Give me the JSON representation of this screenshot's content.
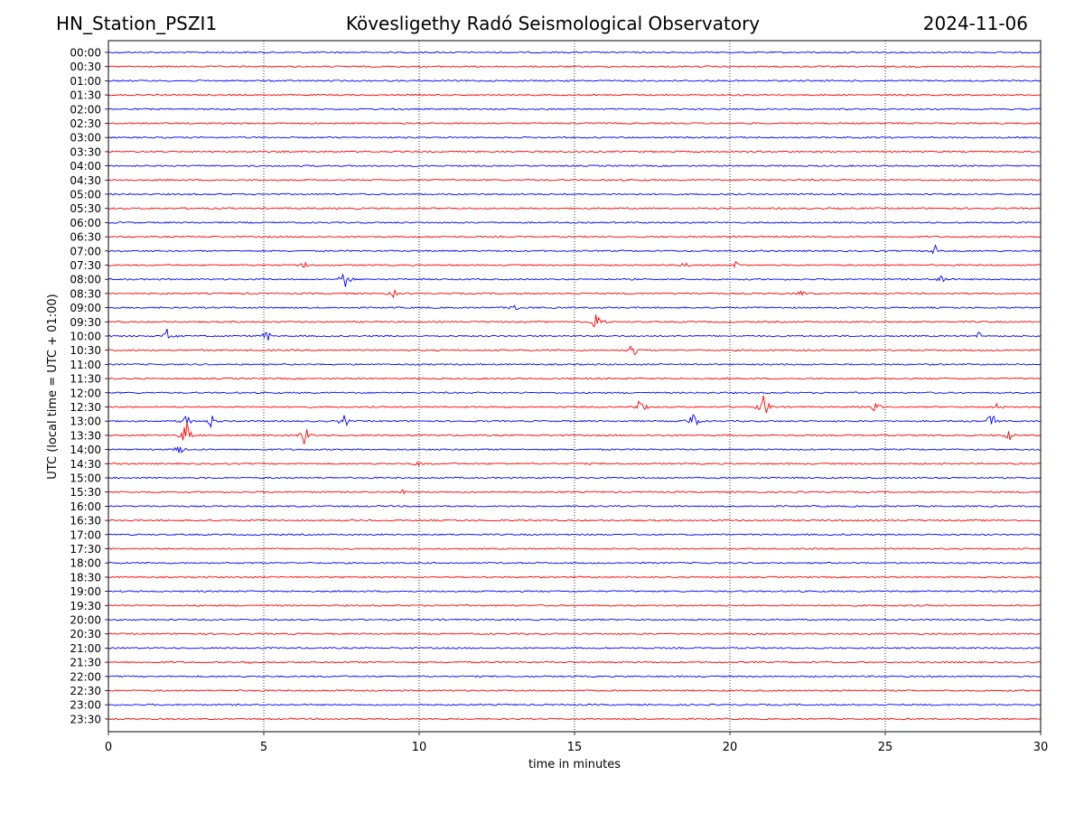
{
  "header": {
    "station": "HN_Station_PSZI1",
    "observatory": "Kövesligethy Radó Seismological Observatory",
    "date": "2024-11-06"
  },
  "chart_data": {
    "type": "line",
    "title": "Kövesligethy Radó Seismological Observatory",
    "xlabel": "time in minutes",
    "ylabel": "UTC (local time = UTC + 01:00)",
    "xlim": [
      0,
      30
    ],
    "xticks": [
      0,
      5,
      10,
      15,
      20,
      25,
      30
    ],
    "grid": "vertical dotted lines at 5-minute intervals",
    "row_labels": [
      "00:00",
      "00:30",
      "01:00",
      "01:30",
      "02:00",
      "02:30",
      "03:00",
      "03:30",
      "04:00",
      "04:30",
      "05:00",
      "05:30",
      "06:00",
      "06:30",
      "07:00",
      "07:30",
      "08:00",
      "08:30",
      "09:00",
      "09:30",
      "10:00",
      "10:30",
      "11:00",
      "11:30",
      "12:00",
      "12:30",
      "13:00",
      "13:30",
      "14:00",
      "14:30",
      "15:00",
      "15:30",
      "16:00",
      "16:30",
      "17:00",
      "17:30",
      "18:00",
      "18:30",
      "19:00",
      "19:30",
      "20:00",
      "20:30",
      "21:00",
      "21:30",
      "22:00",
      "22:30",
      "23:00",
      "23:30"
    ],
    "colors": {
      "even_rows": "#0000ff",
      "odd_rows": "#ff0000"
    },
    "events": [
      {
        "row": "08:00",
        "minute": 7.6,
        "amplitude": 0.9
      },
      {
        "row": "09:30",
        "minute": 15.7,
        "amplitude": 1.1
      },
      {
        "row": "10:30",
        "minute": 16.9,
        "amplitude": 0.8
      },
      {
        "row": "12:30",
        "minute": 17.1,
        "amplitude": 0.9
      },
      {
        "row": "12:30",
        "minute": 21.1,
        "amplitude": 1.3
      },
      {
        "row": "13:00",
        "minute": 2.5,
        "amplitude": 0.7
      },
      {
        "row": "13:00",
        "minute": 3.3,
        "amplitude": 0.8
      },
      {
        "row": "13:00",
        "minute": 7.6,
        "amplitude": 0.7
      },
      {
        "row": "13:00",
        "minute": 18.8,
        "amplitude": 1.2
      },
      {
        "row": "13:00",
        "minute": 28.4,
        "amplitude": 1.0
      },
      {
        "row": "13:30",
        "minute": 2.5,
        "amplitude": 1.6
      },
      {
        "row": "13:30",
        "minute": 6.3,
        "amplitude": 1.2
      },
      {
        "row": "13:30",
        "minute": 29.0,
        "amplitude": 0.6
      },
      {
        "row": "10:00",
        "minute": 1.9,
        "amplitude": 0.7
      },
      {
        "row": "10:00",
        "minute": 5.1,
        "amplitude": 0.6
      },
      {
        "row": "10:00",
        "minute": 28.0,
        "amplitude": 0.5
      },
      {
        "row": "07:00",
        "minute": 26.6,
        "amplitude": 0.6
      },
      {
        "row": "08:00",
        "minute": 26.8,
        "amplitude": 0.6
      },
      {
        "row": "07:30",
        "minute": 18.5,
        "amplitude": 0.4
      },
      {
        "row": "07:30",
        "minute": 20.2,
        "amplitude": 0.4
      },
      {
        "row": "07:30",
        "minute": 6.3,
        "amplitude": 0.4
      },
      {
        "row": "08:30",
        "minute": 9.2,
        "amplitude": 0.4
      },
      {
        "row": "08:30",
        "minute": 22.3,
        "amplitude": 0.4
      },
      {
        "row": "09:00",
        "minute": 13.1,
        "amplitude": 0.4
      },
      {
        "row": "12:30",
        "minute": 24.7,
        "amplitude": 0.5
      },
      {
        "row": "12:30",
        "minute": 28.6,
        "amplitude": 0.4
      },
      {
        "row": "14:00",
        "minute": 2.3,
        "amplitude": 0.5
      },
      {
        "row": "14:30",
        "minute": 10.0,
        "amplitude": 0.3
      },
      {
        "row": "15:30",
        "minute": 9.5,
        "amplitude": 0.3
      },
      {
        "row": "21:30",
        "minute": 4.5,
        "amplitude": 0.3
      }
    ]
  }
}
